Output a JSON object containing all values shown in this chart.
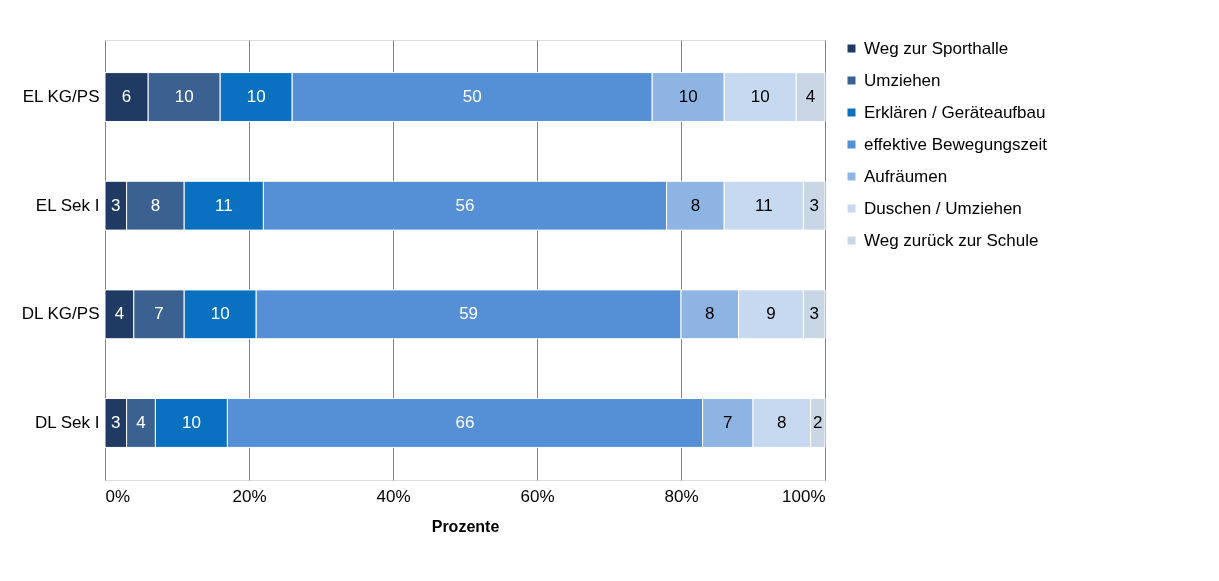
{
  "chart_data": {
    "type": "bar",
    "orientation": "horizontal",
    "stacked": true,
    "data_labels": true,
    "grid": "x",
    "legend": "right",
    "xlabel": "Prozente",
    "categories": [
      "EL KG/PS",
      "EL Sek I",
      "DL KG/PS",
      "DL Sek I"
    ],
    "xlim": [
      0,
      100
    ],
    "xticks": [
      {
        "value": 0,
        "label": "0%"
      },
      {
        "value": 20,
        "label": "20%"
      },
      {
        "value": 40,
        "label": "40%"
      },
      {
        "value": 60,
        "label": "60%"
      },
      {
        "value": 80,
        "label": "80%"
      },
      {
        "value": 100,
        "label": "100%"
      }
    ],
    "series": [
      {
        "name": "Weg zur Sporthalle",
        "color": "#1f3b63",
        "values": [
          6,
          3,
          4,
          3
        ]
      },
      {
        "name": "Umziehen",
        "color": "#3a6190",
        "values": [
          10,
          8,
          7,
          4
        ]
      },
      {
        "name": "Erklären / Geräteaufbau",
        "color": "#0a70c0",
        "values": [
          10,
          11,
          10,
          10
        ]
      },
      {
        "name": "effektive Bewegungszeit",
        "color": "#5590d6",
        "values": [
          50,
          56,
          59,
          66
        ]
      },
      {
        "name": "Aufräumen",
        "color": "#8eb4e3",
        "values": [
          10,
          8,
          8,
          7
        ]
      },
      {
        "name": "Duschen / Umziehen",
        "color": "#c6d9f1",
        "values": [
          10,
          11,
          9,
          8
        ]
      },
      {
        "name": "Weg zurück zur Schule",
        "color": "#c9d6e6",
        "values": [
          4,
          3,
          3,
          2
        ]
      }
    ]
  }
}
